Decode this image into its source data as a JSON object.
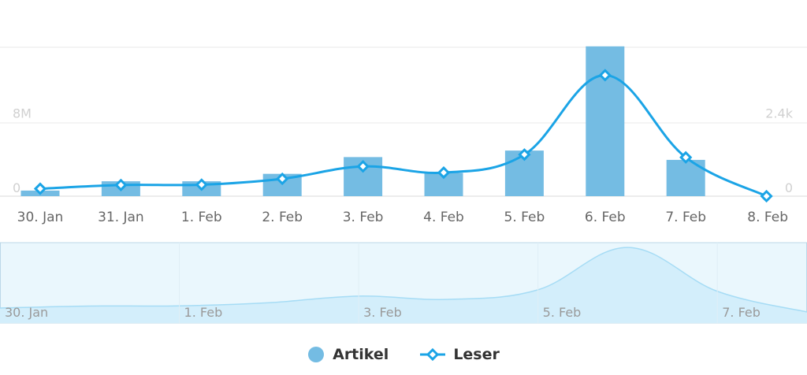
{
  "chart_data": {
    "type": "bar+line",
    "categories": [
      "30. Jan",
      "31. Jan",
      "1. Feb",
      "2. Feb",
      "3. Feb",
      "4. Feb",
      "5. Feb",
      "6. Feb",
      "7. Feb",
      "8. Feb"
    ],
    "series": [
      {
        "name": "Artikel",
        "type": "bar",
        "axis": "left",
        "values": [
          0.6,
          1.6,
          1.6,
          2.4,
          4.2,
          2.5,
          4.9,
          16.1,
          3.9,
          0
        ]
      },
      {
        "name": "Leser",
        "type": "line",
        "axis": "right",
        "values": [
          240,
          360,
          370,
          560,
          960,
          760,
          1340,
          3900,
          1250,
          0
        ]
      }
    ],
    "y_left": {
      "ticks": [
        "0",
        "8M"
      ],
      "range": [
        0,
        16
      ],
      "tick_values": [
        0,
        8
      ]
    },
    "y_right": {
      "ticks": [
        "0",
        "2.4k"
      ],
      "range": [
        0,
        4800
      ],
      "tick_values": [
        0,
        2400
      ]
    },
    "navigator": {
      "tick_labels": [
        "30. Jan",
        "1. Feb",
        "3. Feb",
        "5. Feb",
        "7. Feb"
      ],
      "series_values": [
        240,
        360,
        370,
        560,
        960,
        760,
        1340,
        3900,
        1250,
        0
      ]
    },
    "legend": {
      "position": "bottom-center",
      "items": [
        "Artikel",
        "Leser"
      ]
    },
    "grid": true,
    "colors": {
      "bar": "#74bce3",
      "line": "#1ba4e6",
      "navigator_fill": "#d3eefb",
      "navigator_line": "#a6dcf5"
    }
  }
}
